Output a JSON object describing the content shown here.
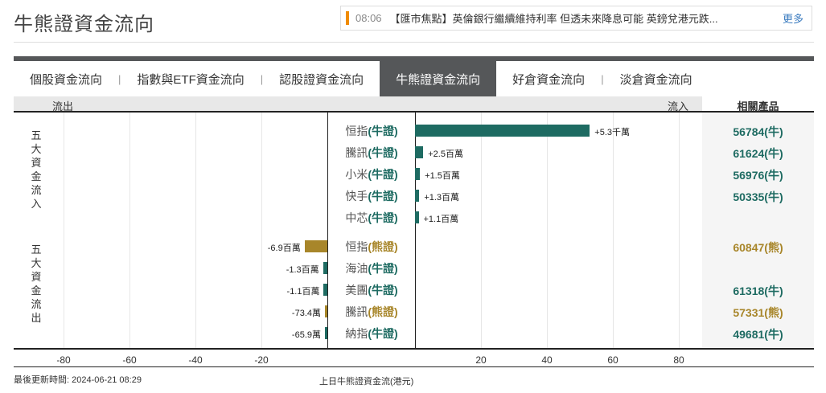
{
  "page": {
    "title": "牛熊證資金流向"
  },
  "news": {
    "time": "08:06",
    "text": "【匯市焦點】英倫銀行繼續維持利率 但透未來降息可能 英鎊兌港元跌...",
    "more_label": "更多",
    "accent_color": "#f08c00"
  },
  "tabs": [
    {
      "label": "個股資金流向",
      "active": false
    },
    {
      "label": "指數與ETF資金流向",
      "active": false
    },
    {
      "label": "認股證資金流向",
      "active": false
    },
    {
      "label": "牛熊證資金流向",
      "active": true
    },
    {
      "label": "好倉資金流向",
      "active": false
    },
    {
      "label": "淡倉資金流向",
      "active": false
    }
  ],
  "header": {
    "outflow": "流出",
    "inflow": "流入",
    "related": "相關產品"
  },
  "sections": {
    "inflow_label": "五大資金流入",
    "outflow_label": "五大資金流出"
  },
  "colors": {
    "bull": "#1e6b62",
    "bear": "#a8862a"
  },
  "rows": [
    {
      "name": "恒指",
      "type": "(牛證)",
      "kind": "bull",
      "value_label": "+5.3千萬",
      "value_m": 53,
      "product": "56784(牛)",
      "product_kind": "bull"
    },
    {
      "name": "騰訊",
      "type": "(牛證)",
      "kind": "bull",
      "value_label": "+2.5百萬",
      "value_m": 2.5,
      "product": "61624(牛)",
      "product_kind": "bull"
    },
    {
      "name": "小米",
      "type": "(牛證)",
      "kind": "bull",
      "value_label": "+1.5百萬",
      "value_m": 1.5,
      "product": "56976(牛)",
      "product_kind": "bull"
    },
    {
      "name": "快手",
      "type": "(牛證)",
      "kind": "bull",
      "value_label": "+1.3百萬",
      "value_m": 1.3,
      "product": "50335(牛)",
      "product_kind": "bull"
    },
    {
      "name": "中芯",
      "type": "(牛證)",
      "kind": "bull",
      "value_label": "+1.1百萬",
      "value_m": 1.1,
      "product": "",
      "product_kind": "bull"
    },
    {
      "name": "恒指",
      "type": "(熊證)",
      "kind": "bear",
      "value_label": "-6.9百萬",
      "value_m": -6.9,
      "product": "60847(熊)",
      "product_kind": "bear"
    },
    {
      "name": "海油",
      "type": "(牛證)",
      "kind": "bull",
      "value_label": "-1.3百萬",
      "value_m": -1.3,
      "product": "",
      "product_kind": "bull"
    },
    {
      "name": "美團",
      "type": "(牛證)",
      "kind": "bull",
      "value_label": "-1.1百萬",
      "value_m": -1.1,
      "product": "61318(牛)",
      "product_kind": "bull"
    },
    {
      "name": "騰訊",
      "type": "(熊證)",
      "kind": "bear",
      "value_label": "-73.4萬",
      "value_m": -0.734,
      "product": "57331(熊)",
      "product_kind": "bear"
    },
    {
      "name": "納指",
      "type": "(牛證)",
      "kind": "bull",
      "value_label": "-65.9萬",
      "value_m": -0.659,
      "product": "49681(牛)",
      "product_kind": "bull"
    }
  ],
  "axis": {
    "ticks_left": [
      "-80",
      "-60",
      "-40",
      "-20"
    ],
    "ticks_right": [
      "20",
      "40",
      "60",
      "80"
    ],
    "label": "上日牛熊證資金流(港元)"
  },
  "footer": {
    "last_updated": "最後更新時間: 2024-06-21 08:29"
  },
  "chart_data": {
    "type": "bar",
    "title": "牛熊證資金流向",
    "xlabel": "上日牛熊證資金流(港元)",
    "unit": "百萬港元",
    "categories": [
      "恒指(牛證)",
      "騰訊(牛證)",
      "小米(牛證)",
      "快手(牛證)",
      "中芯(牛證)",
      "恒指(熊證)",
      "海油(牛證)",
      "美團(牛證)",
      "騰訊(熊證)",
      "納指(牛證)"
    ],
    "values": [
      53,
      2.5,
      1.5,
      1.3,
      1.1,
      -6.9,
      -1.3,
      -1.1,
      -0.734,
      -0.659
    ],
    "xlim": [
      -80,
      80
    ],
    "orientation": "horizontal",
    "grid": true
  }
}
